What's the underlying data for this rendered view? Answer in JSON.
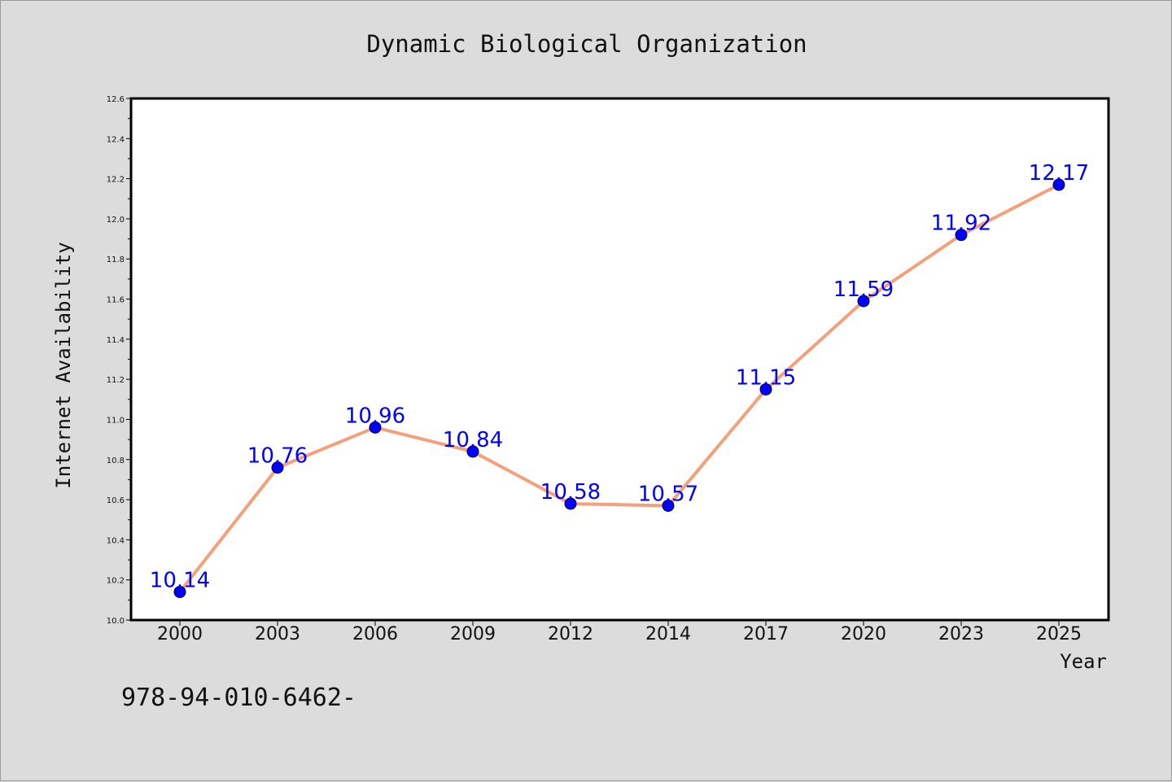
{
  "chart_data": {
    "type": "line",
    "title": "Dynamic Biological Organization",
    "xlabel": "Year",
    "ylabel": "Internet Availability",
    "categories": [
      "2000",
      "2003",
      "2006",
      "2009",
      "2012",
      "2014",
      "2017",
      "2020",
      "2023",
      "2025"
    ],
    "series": [
      {
        "values": [
          10.14,
          10.76,
          10.96,
          10.84,
          10.58,
          10.57,
          11.15,
          11.59,
          11.92,
          12.17
        ],
        "labels": [
          "10.14",
          "10.76",
          "10.96",
          "10.84",
          "10.58",
          "10.57",
          "11.15",
          "11.59",
          "11.92",
          "12.17"
        ],
        "line_color": "#f4a07a",
        "marker_color": "#0000ff"
      }
    ],
    "ylim": [
      10.0,
      12.6
    ],
    "yticks": [
      "10.0",
      "10.2",
      "10.4",
      "10.6",
      "10.8",
      "11.0",
      "11.2",
      "11.4",
      "11.6",
      "11.8",
      "12.0",
      "12.2",
      "12.4",
      "12.6"
    ],
    "grid": false,
    "legend": "none"
  },
  "footnote": "978-94-010-6462-"
}
